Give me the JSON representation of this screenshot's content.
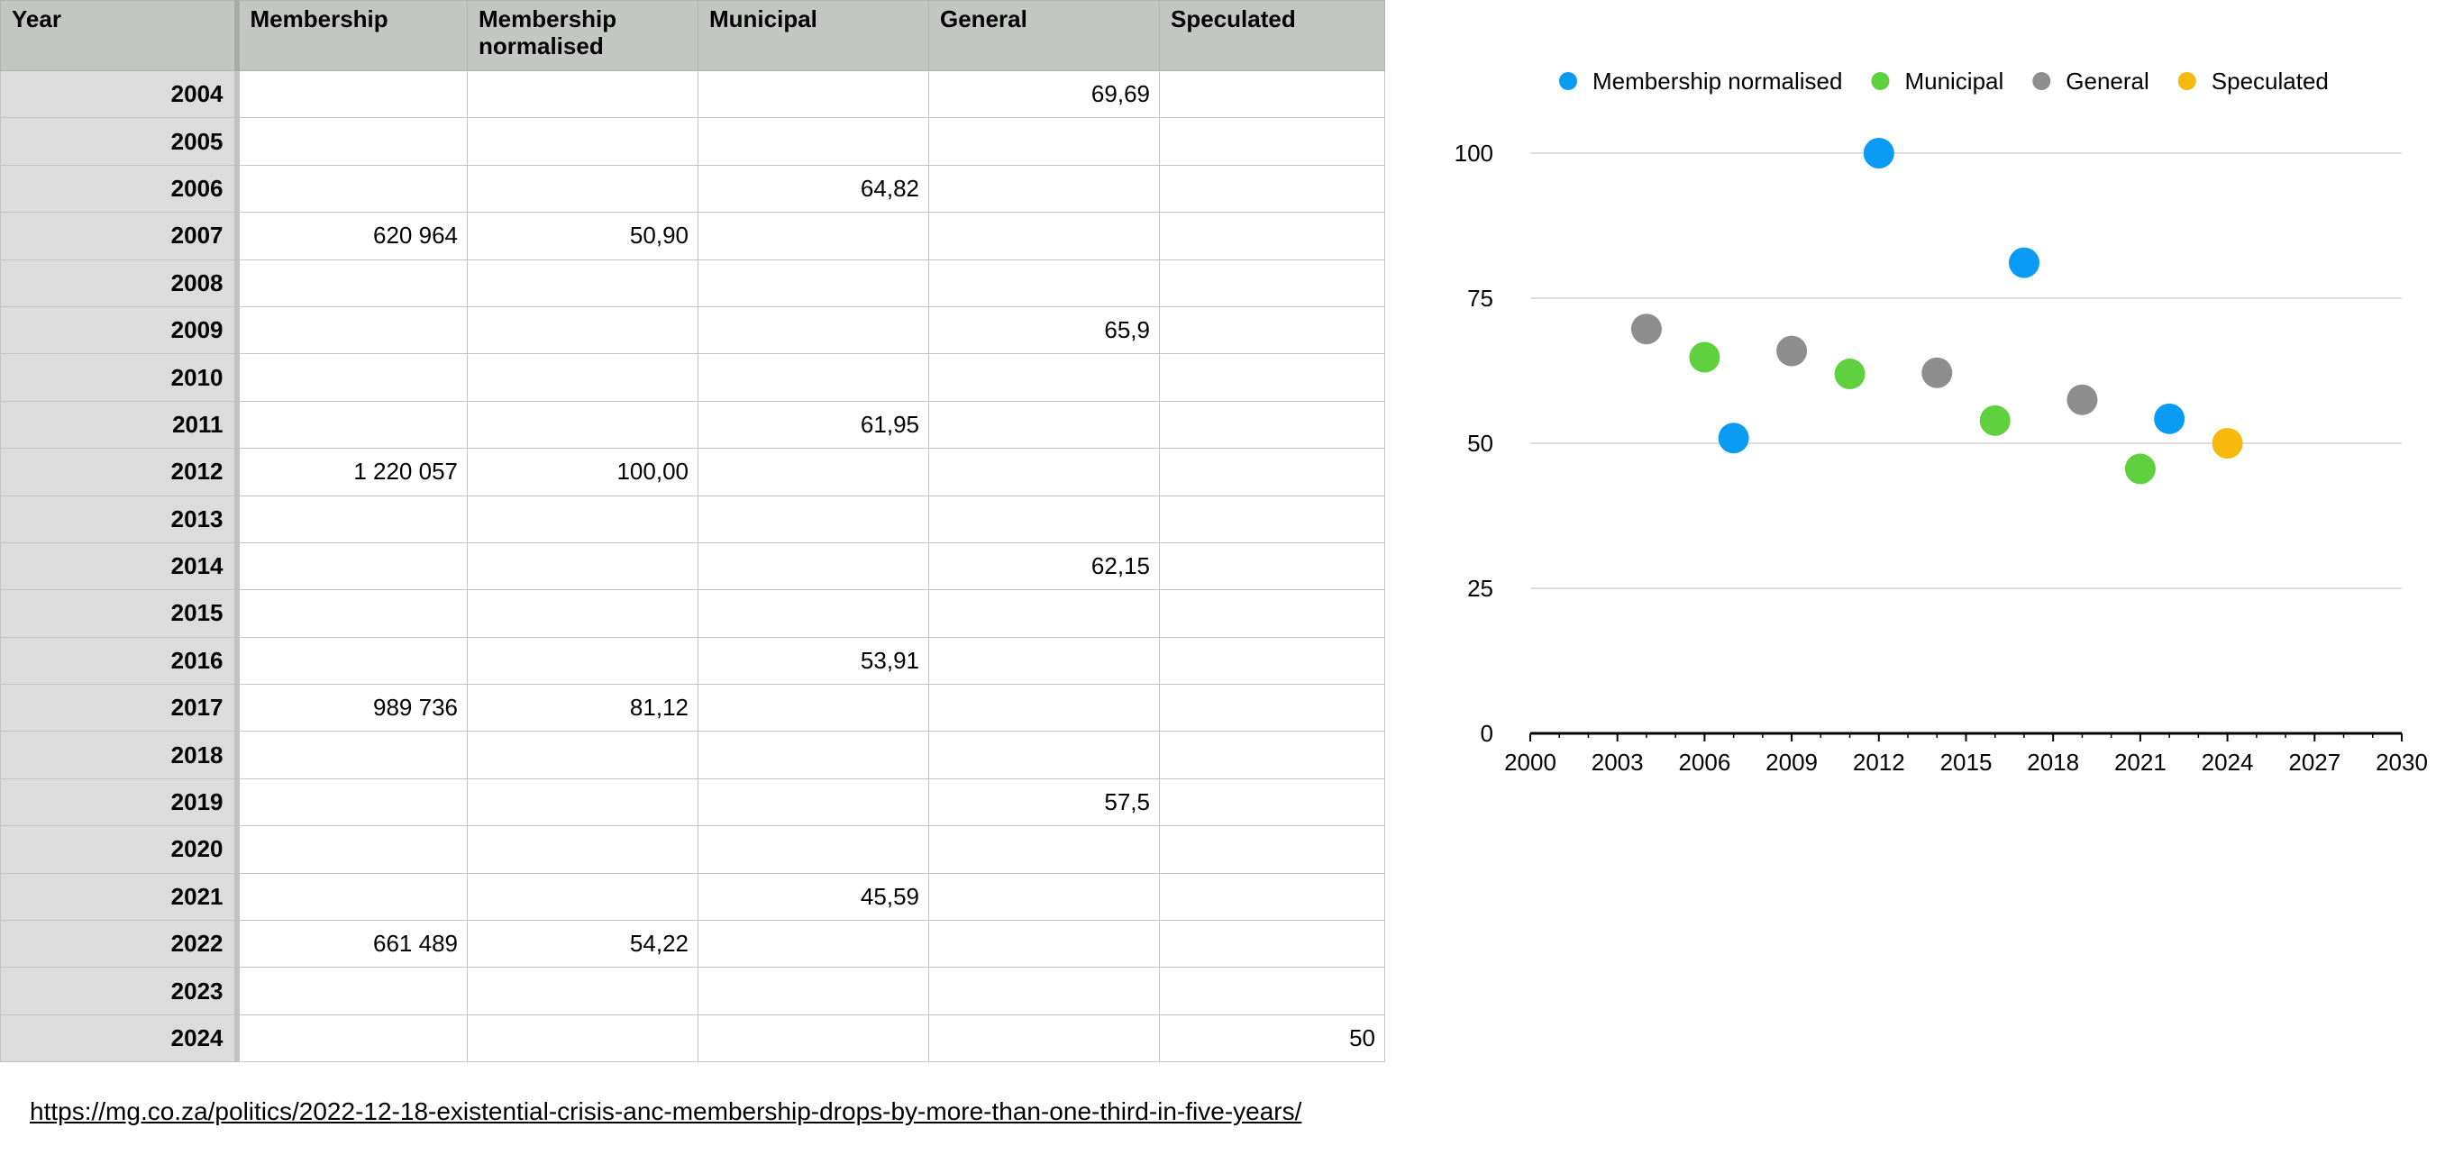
{
  "table": {
    "headers": [
      "Year",
      "Membership",
      "Membership normalised",
      "Municipal",
      "General",
      "Speculated"
    ],
    "rows": [
      {
        "year": "2004",
        "cells": [
          "",
          "",
          "",
          "69,69",
          ""
        ]
      },
      {
        "year": "2005",
        "cells": [
          "",
          "",
          "",
          "",
          ""
        ]
      },
      {
        "year": "2006",
        "cells": [
          "",
          "",
          "64,82",
          "",
          ""
        ]
      },
      {
        "year": "2007",
        "cells": [
          "620 964",
          "50,90",
          "",
          "",
          ""
        ]
      },
      {
        "year": "2008",
        "cells": [
          "",
          "",
          "",
          "",
          ""
        ]
      },
      {
        "year": "2009",
        "cells": [
          "",
          "",
          "",
          "65,9",
          ""
        ]
      },
      {
        "year": "2010",
        "cells": [
          "",
          "",
          "",
          "",
          ""
        ]
      },
      {
        "year": "2011",
        "cells": [
          "",
          "",
          "61,95",
          "",
          ""
        ]
      },
      {
        "year": "2012",
        "cells": [
          "1 220 057",
          "100,00",
          "",
          "",
          ""
        ]
      },
      {
        "year": "2013",
        "cells": [
          "",
          "",
          "",
          "",
          ""
        ]
      },
      {
        "year": "2014",
        "cells": [
          "",
          "",
          "",
          "62,15",
          ""
        ]
      },
      {
        "year": "2015",
        "cells": [
          "",
          "",
          "",
          "",
          ""
        ]
      },
      {
        "year": "2016",
        "cells": [
          "",
          "",
          "53,91",
          "",
          ""
        ]
      },
      {
        "year": "2017",
        "cells": [
          "989 736",
          "81,12",
          "",
          "",
          ""
        ]
      },
      {
        "year": "2018",
        "cells": [
          "",
          "",
          "",
          "",
          ""
        ]
      },
      {
        "year": "2019",
        "cells": [
          "",
          "",
          "",
          "57,5",
          ""
        ]
      },
      {
        "year": "2020",
        "cells": [
          "",
          "",
          "",
          "",
          ""
        ]
      },
      {
        "year": "2021",
        "cells": [
          "",
          "",
          "45,59",
          "",
          ""
        ]
      },
      {
        "year": "2022",
        "cells": [
          "661 489",
          "54,22",
          "",
          "",
          ""
        ]
      },
      {
        "year": "2023",
        "cells": [
          "",
          "",
          "",
          "",
          ""
        ]
      },
      {
        "year": "2024",
        "cells": [
          "",
          "",
          "",
          "",
          "50"
        ]
      }
    ]
  },
  "source_link": "https://mg.co.za/politics/2022-12-18-existential-crisis-anc-membership-drops-by-more-than-one-third-in-five-years/",
  "chart_data": {
    "type": "scatter",
    "title": "",
    "xlabel": "",
    "ylabel": "",
    "xlim": [
      2000,
      2030
    ],
    "ylim": [
      0,
      100
    ],
    "x_ticks": [
      "2000",
      "2003",
      "2006",
      "2009",
      "2012",
      "2015",
      "2018",
      "2021",
      "2024",
      "2027",
      "2030"
    ],
    "y_ticks": [
      "0",
      "25",
      "50",
      "75",
      "100"
    ],
    "grid": "horizontal",
    "legend_position": "top",
    "series": [
      {
        "name": "Membership normalised",
        "color": "#0a9cf5",
        "points": [
          {
            "x": 2007,
            "y": 50.9
          },
          {
            "x": 2012,
            "y": 100.0
          },
          {
            "x": 2017,
            "y": 81.12
          },
          {
            "x": 2022,
            "y": 54.22
          }
        ]
      },
      {
        "name": "Municipal",
        "color": "#5fd13e",
        "points": [
          {
            "x": 2006,
            "y": 64.82
          },
          {
            "x": 2011,
            "y": 61.95
          },
          {
            "x": 2016,
            "y": 53.91
          },
          {
            "x": 2021,
            "y": 45.59
          }
        ]
      },
      {
        "name": "General",
        "color": "#8e8e8e",
        "points": [
          {
            "x": 2004,
            "y": 69.69
          },
          {
            "x": 2009,
            "y": 65.9
          },
          {
            "x": 2014,
            "y": 62.15
          },
          {
            "x": 2019,
            "y": 57.5
          }
        ]
      },
      {
        "name": "Speculated",
        "color": "#f6b90c",
        "points": [
          {
            "x": 2024,
            "y": 50
          }
        ]
      }
    ]
  }
}
